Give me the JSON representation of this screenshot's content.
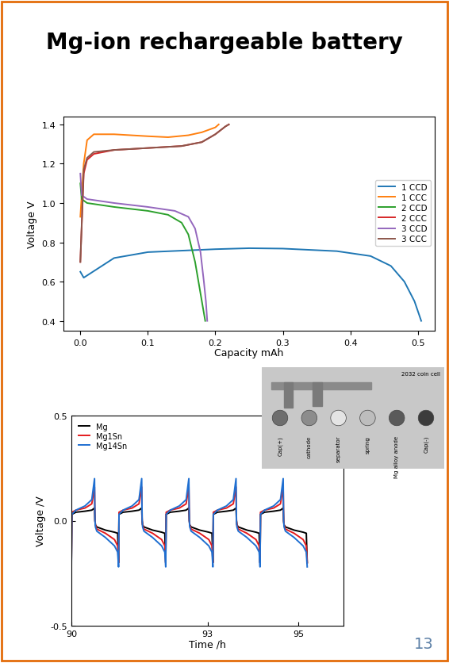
{
  "title": "Mg-ion rechargeable battery",
  "page_number": "13",
  "photo": {
    "caption": "2032 coin cell",
    "parts": [
      "Cap(+)",
      "cathode",
      "separator",
      "spring",
      "Mg alloy anode",
      "Cap(-)"
    ]
  },
  "chart_data": [
    {
      "type": "line",
      "x_label": "Capacity mAh",
      "y_label": "Voltage V",
      "xlim": [
        -0.025,
        0.525
      ],
      "xticks": [
        0.0,
        0.1,
        0.2,
        0.3,
        0.4,
        0.5
      ],
      "ylim": [
        0.35,
        1.44
      ],
      "yticks": [
        0.4,
        0.6,
        0.8,
        1.0,
        1.2,
        1.4
      ],
      "legend": "center right",
      "series": [
        {
          "name": "1 CCD",
          "color": "#1f77b4",
          "x": [
            0,
            0.005,
            0.05,
            0.1,
            0.2,
            0.25,
            0.3,
            0.38,
            0.43,
            0.46,
            0.48,
            0.495,
            0.505
          ],
          "values": [
            0.65,
            0.62,
            0.72,
            0.75,
            0.765,
            0.77,
            0.768,
            0.755,
            0.73,
            0.68,
            0.6,
            0.5,
            0.4
          ]
        },
        {
          "name": "1 CCC",
          "color": "#ff7f0e",
          "x": [
            0,
            0.005,
            0.01,
            0.02,
            0.05,
            0.1,
            0.13,
            0.16,
            0.18,
            0.2,
            0.205
          ],
          "values": [
            0.93,
            1.2,
            1.32,
            1.35,
            1.35,
            1.34,
            1.335,
            1.345,
            1.36,
            1.385,
            1.4
          ]
        },
        {
          "name": "2 CCD",
          "color": "#2ca02c",
          "x": [
            0,
            0.002,
            0.01,
            0.05,
            0.1,
            0.13,
            0.15,
            0.16,
            0.17,
            0.175,
            0.18,
            0.185
          ],
          "values": [
            1.1,
            1.02,
            1.0,
            0.98,
            0.96,
            0.94,
            0.9,
            0.84,
            0.7,
            0.6,
            0.5,
            0.4
          ]
        },
        {
          "name": "2 CCC",
          "color": "#d62728",
          "x": [
            0,
            0.005,
            0.01,
            0.02,
            0.05,
            0.1,
            0.15,
            0.18,
            0.2,
            0.215,
            0.22
          ],
          "values": [
            0.7,
            1.15,
            1.22,
            1.25,
            1.27,
            1.28,
            1.29,
            1.31,
            1.35,
            1.39,
            1.4
          ]
        },
        {
          "name": "3 CCD",
          "color": "#9467bd",
          "x": [
            0,
            0.002,
            0.01,
            0.05,
            0.1,
            0.14,
            0.16,
            0.17,
            0.178,
            0.183,
            0.186,
            0.188
          ],
          "values": [
            1.15,
            1.04,
            1.02,
            1.0,
            0.98,
            0.96,
            0.93,
            0.87,
            0.75,
            0.6,
            0.5,
            0.4
          ]
        },
        {
          "name": "3 CCC",
          "color": "#8c564b",
          "x": [
            0,
            0.005,
            0.01,
            0.02,
            0.05,
            0.1,
            0.15,
            0.18,
            0.2,
            0.215,
            0.22
          ],
          "values": [
            0.7,
            1.17,
            1.23,
            1.26,
            1.27,
            1.28,
            1.29,
            1.31,
            1.35,
            1.39,
            1.4
          ]
        }
      ]
    },
    {
      "type": "line",
      "x_label": "Time /h",
      "y_label": "Voltage /V",
      "xlim": [
        90,
        96
      ],
      "xticks": [
        90,
        93,
        95
      ],
      "ylim": [
        -0.5,
        0.5
      ],
      "yticks": [
        -0.5,
        0.0,
        0.5
      ],
      "legend": "upper left",
      "x": [
        90.0,
        90.01,
        90.1,
        90.3,
        90.45,
        90.51,
        90.52,
        90.53,
        90.56,
        90.75,
        90.95,
        91.02,
        91.04,
        91.05,
        91.14,
        91.34,
        91.49,
        91.55,
        91.56,
        91.57,
        91.6,
        91.79,
        91.99,
        92.06,
        92.08,
        92.09,
        92.18,
        92.38,
        92.53,
        92.59,
        92.6,
        92.61,
        92.64,
        92.83,
        93.03,
        93.1,
        93.12,
        93.13,
        93.22,
        93.42,
        93.57,
        93.63,
        93.64,
        93.65,
        93.68,
        93.87,
        94.07,
        94.14,
        94.16,
        94.17,
        94.26,
        94.46,
        94.61,
        94.67,
        94.68,
        94.69,
        94.72,
        94.91,
        95.11,
        95.18,
        95.2
      ],
      "series": [
        {
          "name": "Mg",
          "color": "#000000",
          "values": [
            -0.2,
            0.03,
            0.04,
            0.045,
            0.05,
            0.06,
            0.0,
            -0.02,
            -0.03,
            -0.045,
            -0.055,
            -0.06,
            -0.2,
            0.03,
            0.04,
            0.045,
            0.05,
            0.06,
            0.0,
            -0.02,
            -0.03,
            -0.045,
            -0.055,
            -0.06,
            -0.2,
            0.03,
            0.04,
            0.045,
            0.05,
            0.06,
            0.0,
            -0.02,
            -0.03,
            -0.045,
            -0.055,
            -0.06,
            -0.2,
            0.03,
            0.04,
            0.045,
            0.05,
            0.06,
            0.0,
            -0.02,
            -0.03,
            -0.045,
            -0.055,
            -0.06,
            -0.2,
            0.03,
            0.04,
            0.045,
            0.05,
            0.06,
            0.0,
            -0.02,
            -0.03,
            -0.045,
            -0.055,
            -0.06,
            -0.2
          ]
        },
        {
          "name": "Mg1Sn",
          "color": "#e41a1c",
          "values": [
            -0.2,
            0.04,
            0.05,
            0.06,
            0.08,
            0.16,
            0.0,
            -0.02,
            -0.04,
            -0.06,
            -0.09,
            -0.12,
            -0.2,
            0.04,
            0.05,
            0.06,
            0.08,
            0.16,
            0.0,
            -0.02,
            -0.04,
            -0.06,
            -0.09,
            -0.12,
            -0.2,
            0.04,
            0.05,
            0.06,
            0.08,
            0.16,
            0.0,
            -0.02,
            -0.04,
            -0.06,
            -0.09,
            -0.12,
            -0.2,
            0.04,
            0.05,
            0.06,
            0.08,
            0.16,
            0.0,
            -0.02,
            -0.04,
            -0.06,
            -0.09,
            -0.12,
            -0.2,
            0.04,
            0.05,
            0.06,
            0.08,
            0.16,
            0.0,
            -0.02,
            -0.04,
            -0.06,
            -0.09,
            -0.12,
            -0.2
          ]
        },
        {
          "name": "Mg14Sn",
          "color": "#1f6fd1",
          "values": [
            -0.22,
            0.03,
            0.05,
            0.07,
            0.1,
            0.2,
            0.0,
            -0.03,
            -0.05,
            -0.08,
            -0.12,
            -0.15,
            -0.22,
            0.03,
            0.05,
            0.07,
            0.1,
            0.2,
            0.0,
            -0.03,
            -0.05,
            -0.08,
            -0.12,
            -0.15,
            -0.22,
            0.03,
            0.05,
            0.07,
            0.1,
            0.2,
            0.0,
            -0.03,
            -0.05,
            -0.08,
            -0.12,
            -0.15,
            -0.22,
            0.03,
            0.05,
            0.07,
            0.1,
            0.2,
            0.0,
            -0.03,
            -0.05,
            -0.08,
            -0.12,
            -0.15,
            -0.22,
            0.03,
            0.05,
            0.07,
            0.1,
            0.2,
            0.0,
            -0.03,
            -0.05,
            -0.08,
            -0.12,
            -0.15,
            -0.22
          ]
        }
      ]
    }
  ]
}
